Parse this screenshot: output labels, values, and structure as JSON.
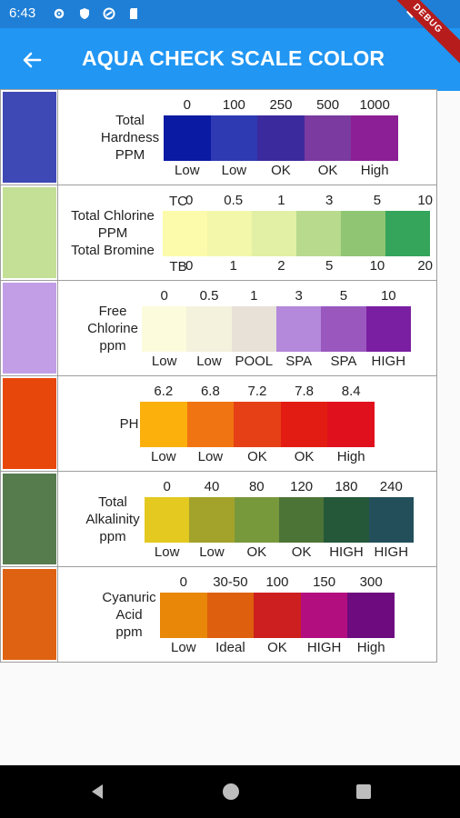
{
  "status": {
    "time": "6:43"
  },
  "app_bar": {
    "title": "AQUA CHECK SCALE COLOR",
    "ribbon": "DEBUG"
  },
  "rows": [
    {
      "swatch": "#3f49b5",
      "label": [
        "Total",
        "Hardness",
        "PPM"
      ],
      "top": [
        "0",
        "100",
        "250",
        "500",
        "1000"
      ],
      "colors": [
        "#0a1aa3",
        "#2d3ab2",
        "#3b2a9e",
        "#7a3aa0",
        "#8c1f96"
      ],
      "bottom": [
        "Low",
        "Low",
        "OK",
        "OK",
        "High"
      ]
    },
    {
      "swatch": "#c3e096",
      "label": [
        "Total Chlorine",
        "PPM",
        "Total Bromine"
      ],
      "top_prefix": "TC",
      "top": [
        "0",
        "0.5",
        "1",
        "3",
        "5",
        "10"
      ],
      "colors": [
        "#fbfbab",
        "#f3f7aa",
        "#e1f0a4",
        "#b7da8c",
        "#8fc573",
        "#34a55a"
      ],
      "bottom_prefix": "TB",
      "bottom": [
        "0",
        "1",
        "2",
        "5",
        "10",
        "20"
      ]
    },
    {
      "swatch": "#c19ee6",
      "label": [
        "Free",
        "Chlorine",
        "ppm"
      ],
      "top": [
        "0",
        "0.5",
        "1",
        "3",
        "5",
        "10"
      ],
      "colors": [
        "#fcfbdc",
        "#f4f1dd",
        "#e7e1d7",
        "#b488db",
        "#9a58bf",
        "#7a1fa1"
      ],
      "bottom": [
        "Low",
        "Low",
        "POOL",
        "SPA",
        "SPA",
        "HIGH"
      ]
    },
    {
      "swatch": "#e8470b",
      "label": [
        "PH"
      ],
      "top": [
        "6.2",
        "6.8",
        "7.2",
        "7.8",
        "8.4"
      ],
      "colors": [
        "#fbb00c",
        "#f07412",
        "#e64016",
        "#e31c13",
        "#e0111d"
      ],
      "bottom": [
        "Low",
        "Low",
        "OK",
        "OK",
        "High"
      ]
    },
    {
      "swatch": "#567b4c",
      "label": [
        "Total",
        "Alkalinity",
        "ppm"
      ],
      "top": [
        "0",
        "40",
        "80",
        "120",
        "180",
        "240"
      ],
      "colors": [
        "#e3c920",
        "#a3a22b",
        "#78983c",
        "#4c7437",
        "#245839",
        "#234f5b"
      ],
      "bottom": [
        "Low",
        "Low",
        "OK",
        "OK",
        "HIGH",
        "HIGH"
      ]
    },
    {
      "swatch": "#de6212",
      "label": [
        "Cyanuric",
        "Acid",
        "ppm"
      ],
      "top": [
        "0",
        "30-50",
        "100",
        "150",
        "300"
      ],
      "colors": [
        "#e98708",
        "#de600f",
        "#cd1f1f",
        "#b30e80",
        "#6e0b7e"
      ],
      "bottom": [
        "Low",
        "Ideal",
        "OK",
        "HIGH",
        "High"
      ]
    }
  ]
}
